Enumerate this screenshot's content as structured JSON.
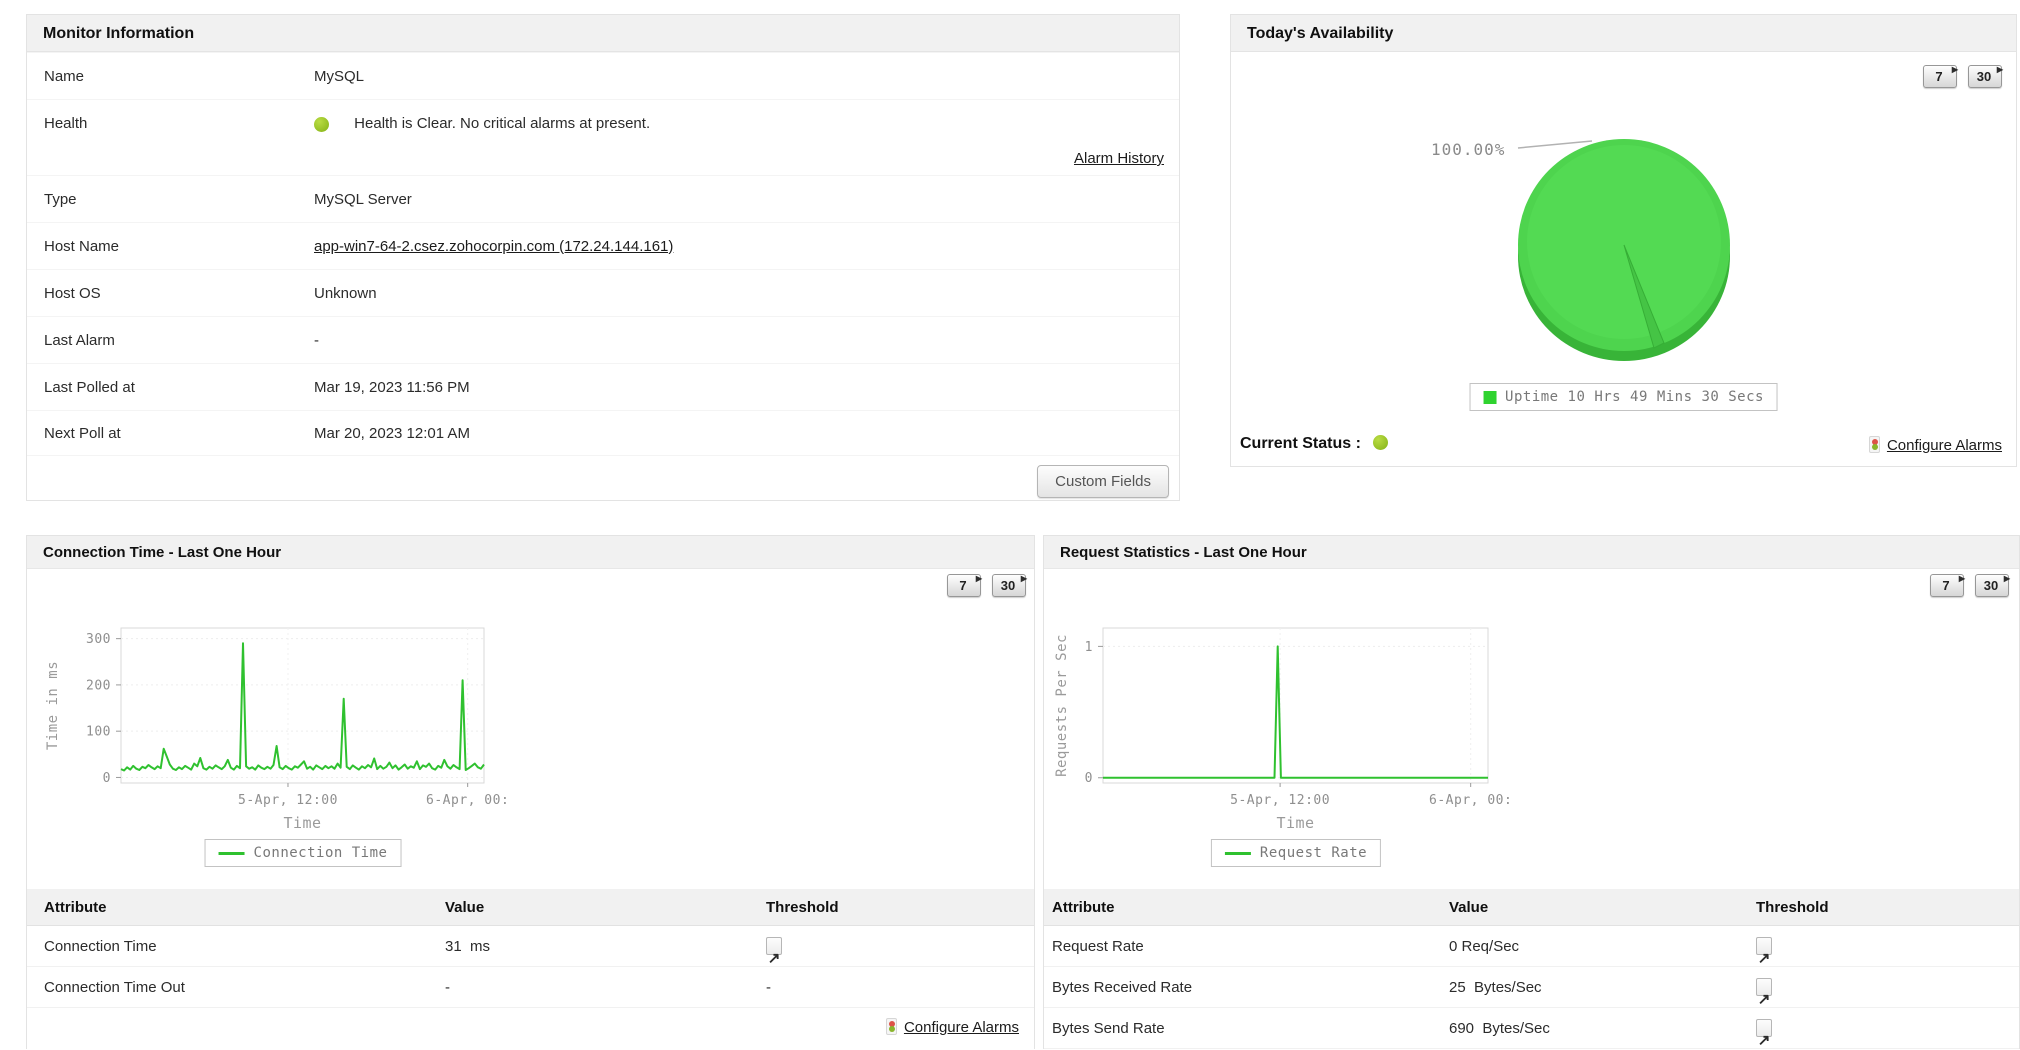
{
  "icons": {
    "period_arrow": "▶",
    "threshold_arrow": "↗"
  },
  "monitor_info": {
    "title": "Monitor Information",
    "rows": [
      {
        "label": "Name",
        "value": "MySQL"
      },
      {
        "label": "Health",
        "value": "Health is Clear. No critical alarms at present.",
        "link": "Alarm History"
      },
      {
        "label": "Type",
        "value": "MySQL Server"
      },
      {
        "label": "Host Name",
        "value": "app-win7-64-2.csez.zohocorpin.com (172.24.144.161)"
      },
      {
        "label": "Host OS",
        "value": "Unknown"
      },
      {
        "label": "Last Alarm",
        "value": "-"
      },
      {
        "label": "Last Polled at",
        "value": "Mar 19, 2023 11:56 PM"
      },
      {
        "label": "Next Poll at",
        "value": "Mar 20, 2023 12:01 AM"
      }
    ],
    "custom_fields_button": "Custom Fields"
  },
  "availability": {
    "title": "Today's Availability",
    "period_buttons": [
      "7",
      "30"
    ],
    "current_status_label": "Current Status :",
    "configure_alarms": "Configure Alarms"
  },
  "connection_panel": {
    "title": "Connection Time - Last One Hour",
    "period_buttons": [
      "7",
      "30"
    ],
    "table_headers": [
      "Attribute",
      "Value",
      "Threshold"
    ],
    "rows": [
      {
        "attribute": "Connection Time",
        "value": "31  ms"
      },
      {
        "attribute": "Connection Time Out",
        "value": "-",
        "threshold": "-"
      }
    ],
    "configure_alarms": "Configure Alarms"
  },
  "request_panel": {
    "title": "Request Statistics - Last One Hour",
    "period_buttons": [
      "7",
      "30"
    ],
    "table_headers": [
      "Attribute",
      "Value",
      "Threshold"
    ],
    "rows": [
      {
        "attribute": "Request Rate",
        "value": "0 Req/Sec"
      },
      {
        "attribute": "Bytes Received Rate",
        "value": "25  Bytes/Sec"
      },
      {
        "attribute": "Bytes Send Rate",
        "value": "690  Bytes/Sec"
      }
    ]
  },
  "chart_data": [
    {
      "type": "line",
      "title": "Connection Time - Last One Hour",
      "xlabel": "Time",
      "ylabel": "Time in ms",
      "legend": "Connection Time",
      "color": "#2fc12f",
      "ylim": [
        -12,
        323
      ],
      "yticks": [
        0,
        100,
        200,
        300
      ],
      "xticks": [
        {
          "pos": 0.46,
          "label": "5-Apr, 12:00"
        },
        {
          "pos": 0.955,
          "label": "6-Apr, 00:"
        }
      ],
      "values": [
        18,
        15,
        22,
        17,
        25,
        19,
        16,
        23,
        20,
        27,
        22,
        18,
        24,
        20,
        62,
        45,
        28,
        19,
        16,
        22,
        18,
        25,
        21,
        17,
        30,
        24,
        42,
        20,
        17,
        23,
        19,
        26,
        22,
        18,
        24,
        38,
        21,
        17,
        25,
        20,
        290,
        24,
        19,
        22,
        17,
        26,
        21,
        18,
        23,
        19,
        27,
        68,
        22,
        18,
        25,
        20,
        17,
        24,
        21,
        28,
        35,
        19,
        23,
        17,
        26,
        22,
        18,
        25,
        20,
        24,
        19,
        30,
        21,
        170,
        23,
        18,
        26,
        21,
        17,
        24,
        20,
        27,
        22,
        41,
        18,
        25,
        19,
        23,
        32,
        20,
        26,
        17,
        22,
        28,
        19,
        24,
        21,
        35,
        18,
        26,
        23,
        30,
        20,
        17,
        25,
        21,
        38,
        24,
        19,
        27,
        22,
        18,
        210,
        16,
        20,
        25,
        30,
        22,
        19,
        28
      ]
    },
    {
      "type": "line",
      "title": "Request Statistics - Last One Hour",
      "xlabel": "Time",
      "ylabel": "Requests Per Sec",
      "legend": "Request Rate",
      "color": "#2fc12f",
      "ylim": [
        -0.04,
        1.14
      ],
      "yticks": [
        0,
        1
      ],
      "xticks": [
        {
          "pos": 0.46,
          "label": "5-Apr, 12:00"
        },
        {
          "pos": 0.955,
          "label": "6-Apr, 00:"
        }
      ],
      "values": [
        0,
        0,
        0,
        0,
        0,
        0,
        0,
        0,
        0,
        0,
        0,
        0,
        0,
        0,
        0,
        0,
        0,
        0,
        0,
        0,
        0,
        0,
        0,
        0,
        0,
        0,
        0,
        0,
        0,
        0,
        0,
        0,
        0,
        0,
        0,
        0,
        0,
        0,
        0,
        0,
        0,
        0,
        0,
        0,
        0,
        0,
        0,
        0,
        0,
        0,
        0,
        0,
        0,
        0,
        1,
        0,
        0,
        0,
        0,
        0,
        0,
        0,
        0,
        0,
        0,
        0,
        0,
        0,
        0,
        0,
        0,
        0,
        0,
        0,
        0,
        0,
        0,
        0,
        0,
        0,
        0,
        0,
        0,
        0,
        0,
        0,
        0,
        0,
        0,
        0,
        0,
        0,
        0,
        0,
        0,
        0,
        0,
        0,
        0,
        0,
        0,
        0,
        0,
        0,
        0,
        0,
        0,
        0,
        0,
        0,
        0,
        0,
        0,
        0,
        0,
        0,
        0,
        0,
        0,
        0
      ]
    },
    {
      "type": "pie",
      "title": "Today's Availability",
      "label": "100.00%",
      "slices": [
        {
          "label": "Uptime 10 Hrs 49 Mins 30 Secs",
          "value": 100.0,
          "color": "#4ed44e"
        }
      ]
    }
  ]
}
